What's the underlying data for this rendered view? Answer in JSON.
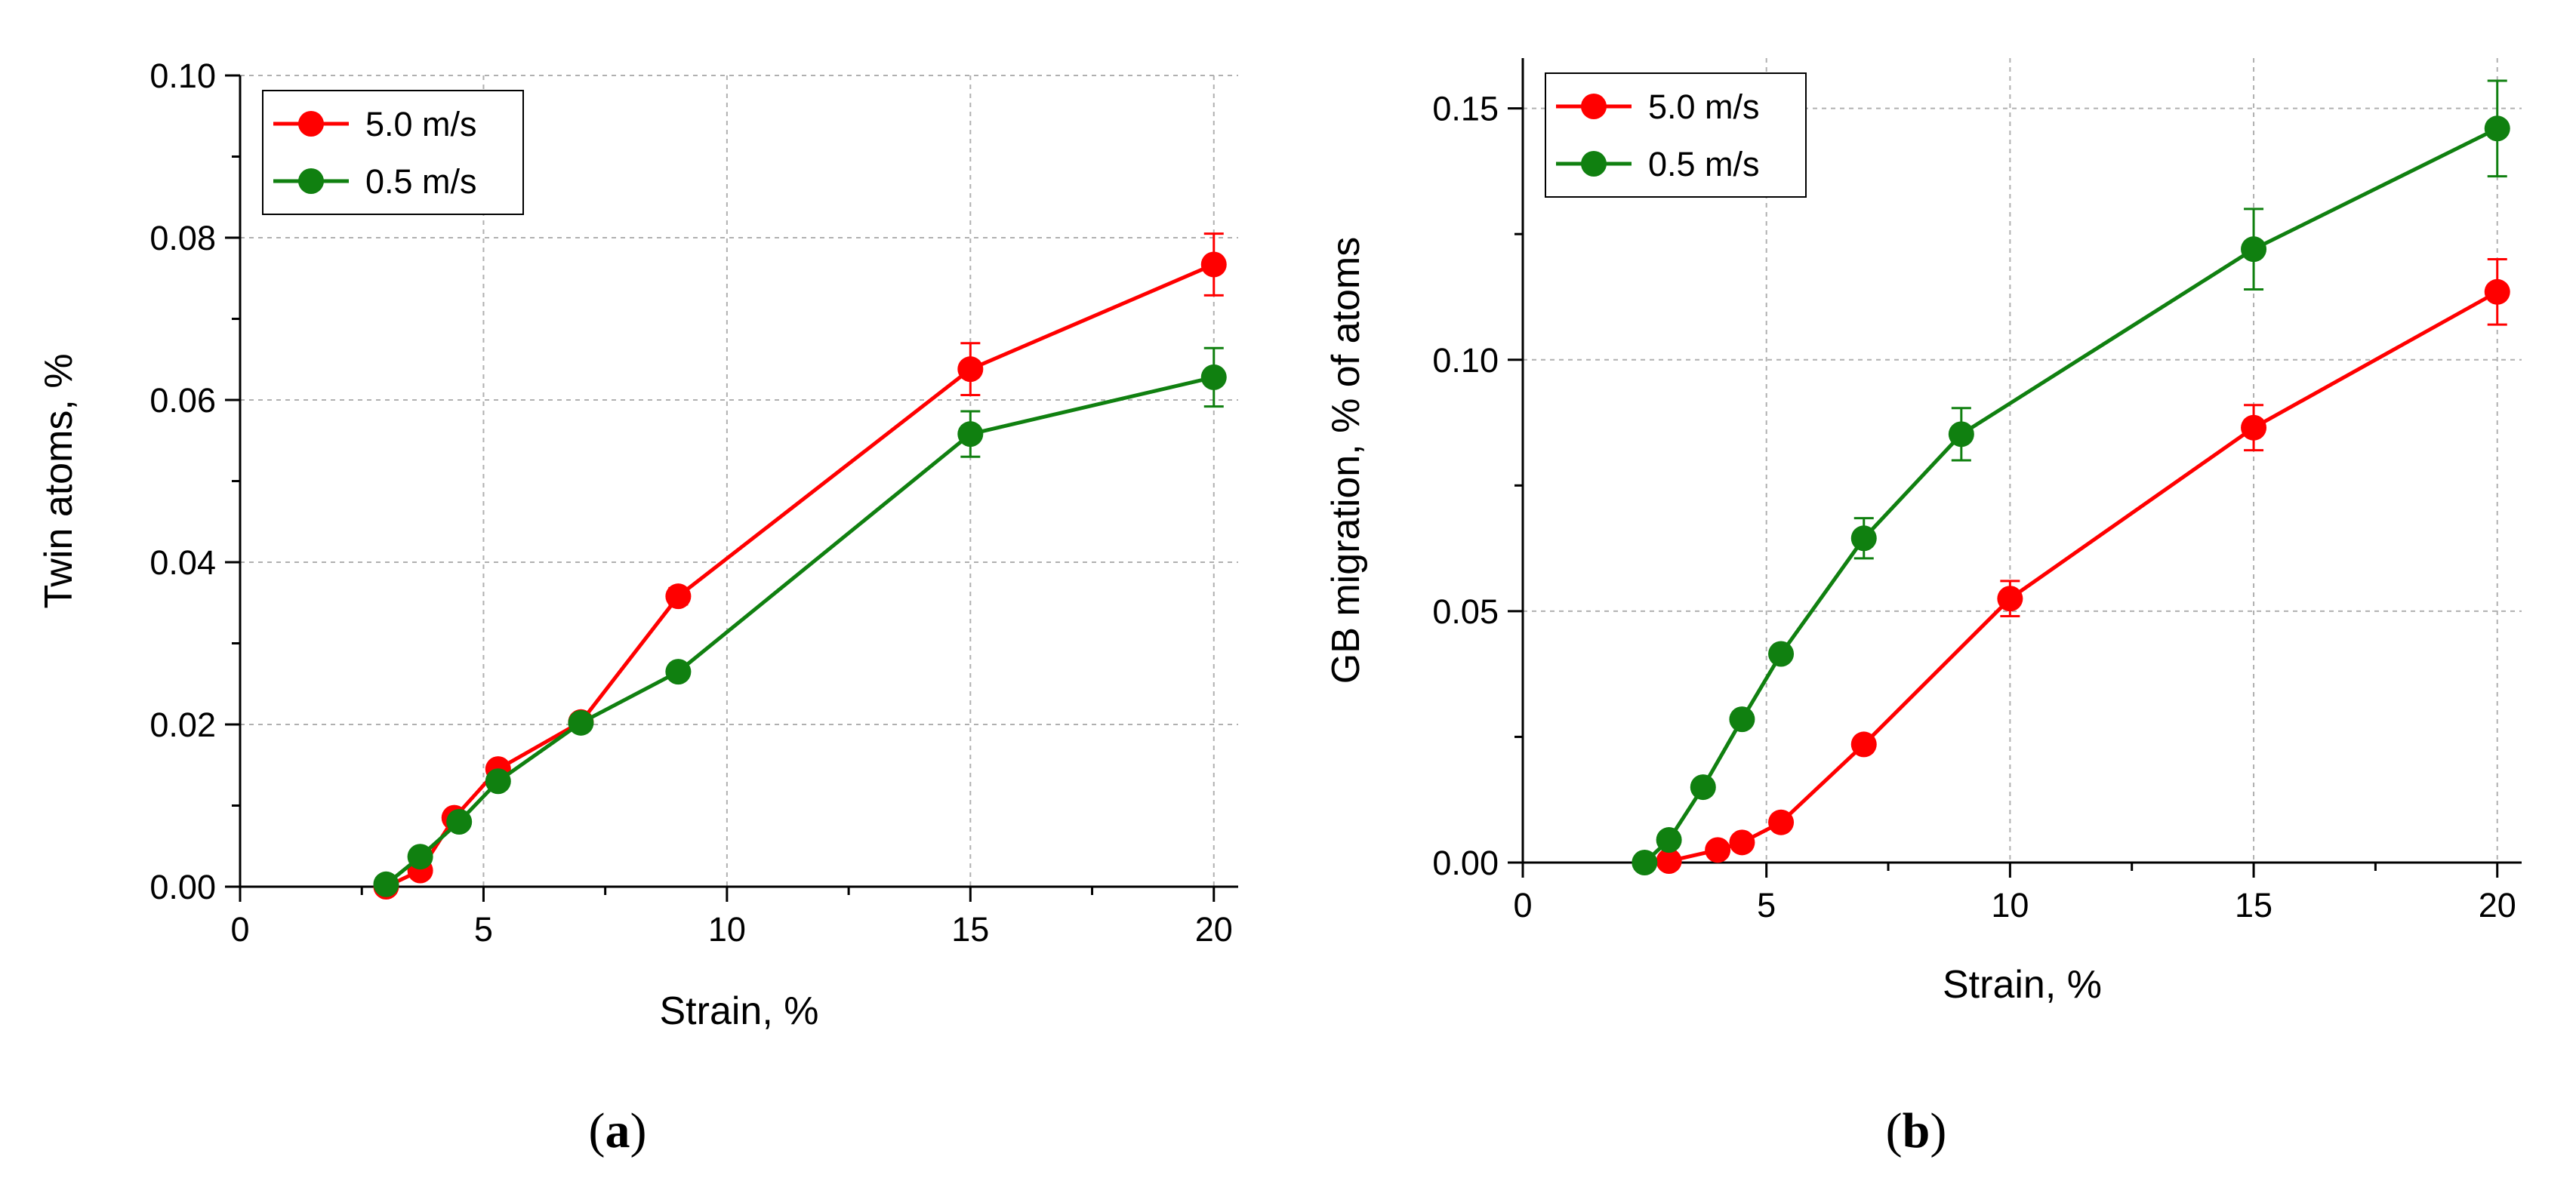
{
  "chart_data": [
    {
      "type": "line",
      "panel_label": "a",
      "title": "",
      "xlabel": "Strain, %",
      "ylabel": "Twin atoms, %",
      "xlim": [
        0,
        20.5
      ],
      "ylim": [
        0,
        0.1
      ],
      "xticks": [
        0,
        5,
        10,
        15,
        20
      ],
      "xtick_labels": [
        "0",
        "5",
        "10",
        "15",
        "20"
      ],
      "yticks": [
        0,
        0.02,
        0.04,
        0.06,
        0.08,
        0.1
      ],
      "ytick_labels": [
        "0.00",
        "0.02",
        "0.04",
        "0.06",
        "0.08",
        "0.10"
      ],
      "grid": true,
      "legend_position": "top-left",
      "series": [
        {
          "name": "5.0 m/s",
          "color": "#ff0000",
          "x": [
            3.0,
            3.7,
            4.4,
            5.3,
            7.0,
            9.0,
            15.0,
            20.0
          ],
          "y": [
            0.0,
            0.002,
            0.0085,
            0.0145,
            0.0203,
            0.0358,
            0.0638,
            0.0767
          ],
          "error": [
            0,
            0,
            0,
            0,
            0,
            0.001,
            0.0032,
            0.0038
          ]
        },
        {
          "name": "0.5 m/s",
          "color": "#108010",
          "x": [
            3.0,
            3.7,
            4.5,
            5.3,
            7.0,
            9.0,
            15.0,
            20.0
          ],
          "y": [
            0.0003,
            0.0037,
            0.008,
            0.013,
            0.0202,
            0.0265,
            0.0558,
            0.0628
          ],
          "error": [
            0,
            0,
            0,
            0,
            0,
            0,
            0.0028,
            0.0036
          ]
        }
      ]
    },
    {
      "type": "line",
      "panel_label": "b",
      "title": "",
      "xlabel": "Strain, %",
      "ylabel": "GB migration, % of atoms",
      "xlim": [
        0,
        20.5
      ],
      "ylim": [
        0,
        0.16
      ],
      "xticks": [
        0,
        5,
        10,
        15,
        20
      ],
      "xtick_labels": [
        "0",
        "5",
        "10",
        "15",
        "20"
      ],
      "yticks": [
        0,
        0.05,
        0.1,
        0.15
      ],
      "ytick_labels": [
        "0.00",
        "0.05",
        "0.10",
        "0.15"
      ],
      "grid": true,
      "legend_position": "top-left",
      "series": [
        {
          "name": "5.0 m/s",
          "color": "#ff0000",
          "x": [
            3.0,
            4.0,
            4.5,
            5.3,
            7.0,
            10.0,
            15.0,
            20.0
          ],
          "y": [
            0.0003,
            0.0025,
            0.004,
            0.008,
            0.0235,
            0.0525,
            0.0865,
            0.1135
          ],
          "error": [
            0,
            0,
            0,
            0,
            0,
            0.0035,
            0.0045,
            0.0065
          ]
        },
        {
          "name": "0.5 m/s",
          "color": "#108010",
          "x": [
            2.5,
            3.0,
            3.7,
            4.5,
            5.3,
            7.0,
            9.0,
            15.0,
            20.0
          ],
          "y": [
            0.0,
            0.0045,
            0.015,
            0.0285,
            0.0415,
            0.0645,
            0.0852,
            0.122,
            0.146
          ],
          "error": [
            0,
            0,
            0,
            0,
            0,
            0.004,
            0.0052,
            0.008,
            0.0095
          ]
        }
      ]
    }
  ]
}
